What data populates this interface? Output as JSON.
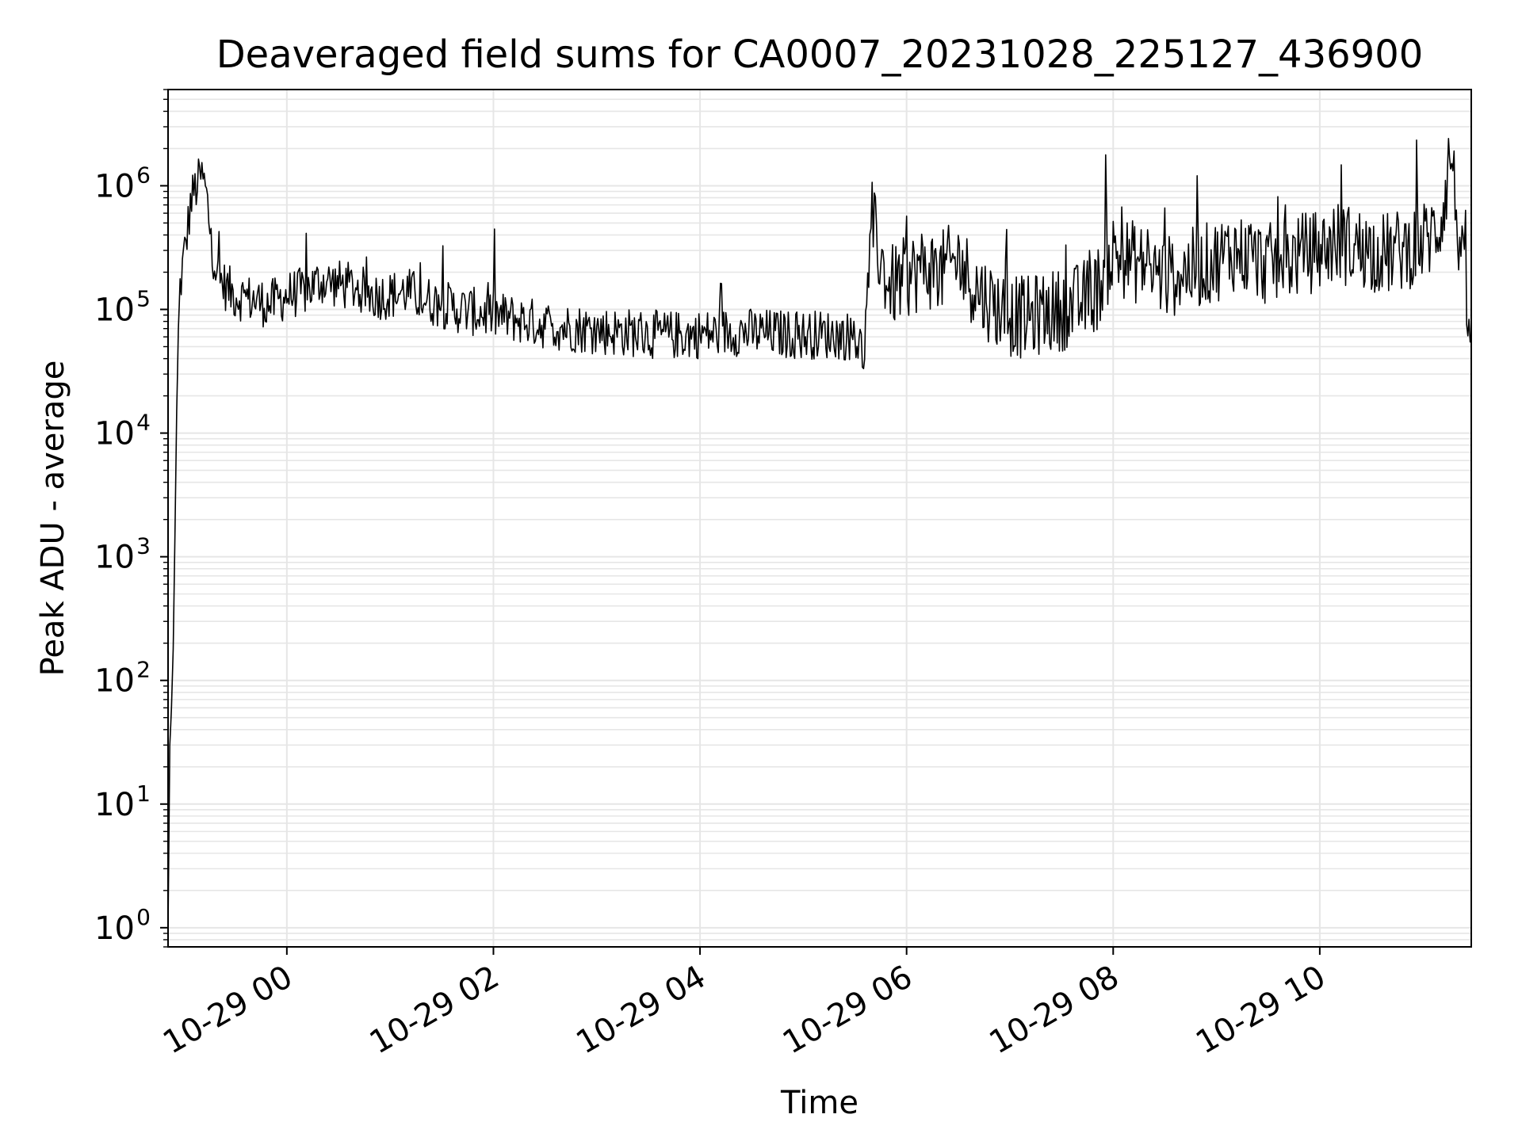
{
  "chart_data": {
    "type": "line",
    "title": "Deaveraged field sums for CA0007_20231028_225127_436900",
    "xlabel": "Time",
    "ylabel": "Peak ADU - average",
    "yscale": "log",
    "y_tick_labels": [
      {
        "base": "10",
        "exp": "0"
      },
      {
        "base": "10",
        "exp": "1"
      },
      {
        "base": "10",
        "exp": "2"
      },
      {
        "base": "10",
        "exp": "3"
      },
      {
        "base": "10",
        "exp": "4"
      },
      {
        "base": "10",
        "exp": "5"
      },
      {
        "base": "10",
        "exp": "6"
      }
    ],
    "x_tick_labels": [
      "10-29 00",
      "10-29 02",
      "10-29 04",
      "10-29 06",
      "10-29 08",
      "10-29 10"
    ],
    "xlim": [
      "2023-10-28 22:51",
      "2023-10-29 11:28"
    ],
    "ylim": [
      0.7,
      6000000
    ],
    "grid": true,
    "colors": {
      "line": "#000000",
      "grid": "#e6e6e6",
      "axes": "#000000",
      "background": "#ffffff"
    },
    "series": [
      {
        "x": [
          "2023-10-28 22:51",
          "2023-10-28 22:52",
          "2023-10-28 22:53",
          "2023-10-28 22:54",
          "2023-10-28 22:55",
          "2023-10-28 22:56",
          "2023-10-28 22:57",
          "2023-10-28 22:58",
          "2023-10-28 23:00",
          "2023-10-28 23:02",
          "2023-10-28 23:04",
          "2023-10-28 23:06",
          "2023-10-28 23:08",
          "2023-10-28 23:10",
          "2023-10-28 23:12",
          "2023-10-28 23:14",
          "2023-10-28 23:16",
          "2023-10-28 23:18",
          "2023-10-28 23:20",
          "2023-10-28 23:25",
          "2023-10-28 23:30",
          "2023-10-28 23:40",
          "2023-10-28 23:50",
          "2023-10-29 00:00",
          "2023-10-29 00:10",
          "2023-10-29 00:20",
          "2023-10-29 00:30",
          "2023-10-29 00:40",
          "2023-10-29 00:50",
          "2023-10-29 01:00",
          "2023-10-29 01:10",
          "2023-10-29 01:20",
          "2023-10-29 01:30",
          "2023-10-29 01:40",
          "2023-10-29 01:50",
          "2023-10-29 02:00",
          "2023-10-29 02:10",
          "2023-10-29 02:20",
          "2023-10-29 02:30",
          "2023-10-29 02:40",
          "2023-10-29 02:50",
          "2023-10-29 03:00",
          "2023-10-29 03:10",
          "2023-10-29 03:20",
          "2023-10-29 03:30",
          "2023-10-29 03:40",
          "2023-10-29 03:50",
          "2023-10-29 04:00",
          "2023-10-29 04:10",
          "2023-10-29 04:20",
          "2023-10-29 04:30",
          "2023-10-29 04:40",
          "2023-10-29 04:50",
          "2023-10-29 05:00",
          "2023-10-29 05:10",
          "2023-10-29 05:20",
          "2023-10-29 05:30",
          "2023-10-29 05:33",
          "2023-10-29 05:35",
          "2023-10-29 05:38",
          "2023-10-29 05:40",
          "2023-10-29 05:45",
          "2023-10-29 05:50",
          "2023-10-29 06:00",
          "2023-10-29 06:10",
          "2023-10-29 06:20",
          "2023-10-29 06:30",
          "2023-10-29 06:40",
          "2023-10-29 06:50",
          "2023-10-29 07:00",
          "2023-10-29 07:10",
          "2023-10-29 07:20",
          "2023-10-29 07:30",
          "2023-10-29 07:40",
          "2023-10-29 07:50",
          "2023-10-29 08:00",
          "2023-10-29 08:10",
          "2023-10-29 08:20",
          "2023-10-29 08:30",
          "2023-10-29 08:40",
          "2023-10-29 08:50",
          "2023-10-29 09:00",
          "2023-10-29 09:10",
          "2023-10-29 09:20",
          "2023-10-29 09:30",
          "2023-10-29 09:40",
          "2023-10-29 09:50",
          "2023-10-29 10:00",
          "2023-10-29 10:10",
          "2023-10-29 10:20",
          "2023-10-29 10:30",
          "2023-10-29 10:40",
          "2023-10-29 10:50",
          "2023-10-29 11:00",
          "2023-10-29 11:05",
          "2023-10-29 11:10",
          "2023-10-29 11:13",
          "2023-10-29 11:16",
          "2023-10-29 11:20",
          "2023-10-29 11:24",
          "2023-10-29 11:28"
        ],
        "y": [
          1,
          30,
          60,
          180,
          1500,
          15000,
          60000,
          150000,
          250000,
          400000,
          700000,
          900000,
          1000000,
          1200000,
          1050000,
          700000,
          350000,
          250000,
          180000,
          150000,
          130000,
          120000,
          110000,
          130000,
          140000,
          170000,
          160000,
          150000,
          130000,
          130000,
          140000,
          120000,
          110000,
          100000,
          95000,
          90000,
          85000,
          80000,
          75000,
          72000,
          70000,
          68000,
          66000,
          65000,
          63000,
          62000,
          62000,
          63000,
          64000,
          66000,
          65000,
          64000,
          63000,
          62000,
          63000,
          62000,
          60000,
          50000,
          40000,
          200000,
          500000,
          250000,
          150000,
          180000,
          220000,
          200000,
          250000,
          150000,
          110000,
          90000,
          85000,
          95000,
          100000,
          110000,
          140000,
          280000,
          250000,
          220000,
          180000,
          200000,
          220000,
          250000,
          300000,
          260000,
          230000,
          250000,
          280000,
          300000,
          350000,
          320000,
          300000,
          280000,
          310000,
          350000,
          400000,
          500000,
          900000,
          2000000,
          500000,
          150000,
          60000
        ]
      }
    ]
  }
}
